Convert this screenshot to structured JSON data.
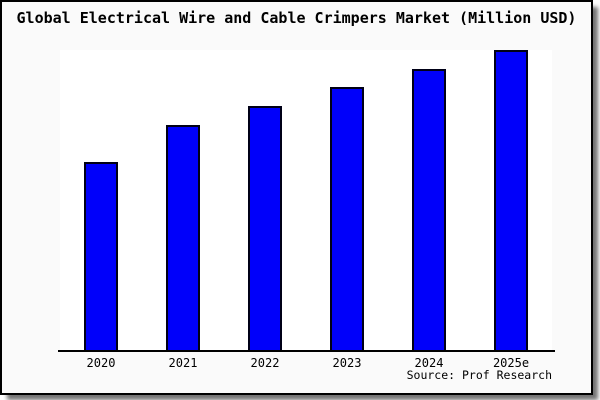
{
  "title": "Global Electrical Wire and Cable Crimpers Market (Million USD)",
  "source": {
    "label": "Source: Prof Research"
  },
  "colors": {
    "bar_fill": "#0000fa",
    "bar_edge": "#000016",
    "card_background": "#fafafa",
    "plot_background": "#ffffff",
    "axis": "#000000",
    "frame_border": "#000000",
    "text": "#000000"
  },
  "chart_data": {
    "type": "bar",
    "title": "Global Electrical Wire and Cable Crimpers Market (Million USD)",
    "categories": [
      "2020",
      "2021",
      "2022",
      "2023",
      "2024",
      "2025e"
    ],
    "values": [
      62.7,
      75.0,
      81.3,
      87.7,
      93.7,
      100.0
    ],
    "xlabel": "",
    "ylabel": "",
    "ylim": [
      0,
      100
    ],
    "grid": false,
    "legend": "none",
    "y_axis_shown": false,
    "note": "No y-axis, gridlines or data labels are visible; values are relative bar heights read from pixels, normalized so the tallest bar (2025e) = 100."
  }
}
